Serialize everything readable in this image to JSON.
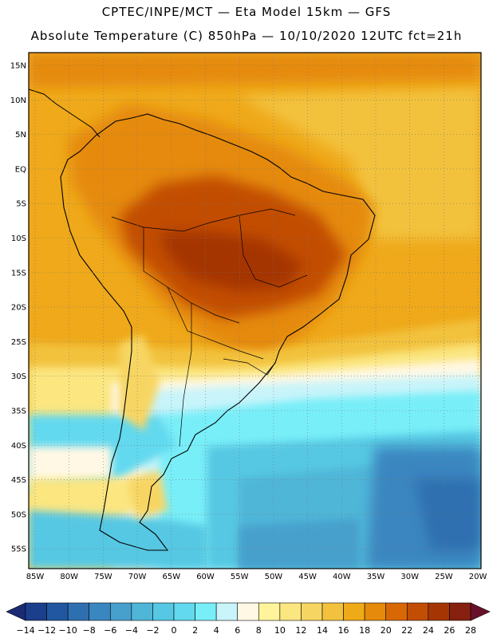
{
  "header": {
    "line1": "CPTEC/INPE/MCT —  Eta Model 15km — GFS",
    "line2": "Absolute Temperature (C) 850hPa — 10/10/2020 12UTC fct=21h"
  },
  "map": {
    "lat_labels": [
      "15N",
      "10N",
      "5N",
      "EQ",
      "5S",
      "10S",
      "15S",
      "20S",
      "25S",
      "30S",
      "35S",
      "40S",
      "45S",
      "50S",
      "55S"
    ],
    "lon_labels": [
      "85W",
      "80W",
      "75W",
      "70W",
      "65W",
      "60W",
      "55W",
      "50W",
      "45W",
      "40W",
      "35W",
      "30W",
      "25W",
      "20W"
    ]
  },
  "colorbar": {
    "labels": [
      "-14",
      "-12",
      "-10",
      "-8",
      "-6",
      "-4",
      "-2",
      "0",
      "2",
      "4",
      "6",
      "8",
      "10",
      "12",
      "14",
      "16",
      "18",
      "20",
      "22",
      "24",
      "26",
      "28"
    ],
    "colors": [
      "#1c3f8c",
      "#2157a0",
      "#2e6fb0",
      "#3a86c0",
      "#47a0cc",
      "#4fb6d8",
      "#56c8e3",
      "#62d9ef",
      "#78eef8",
      "#c8f4fa",
      "#fff8e4",
      "#fff49c",
      "#fbe680",
      "#f7d562",
      "#f2c23e",
      "#efaa18",
      "#e58a0a",
      "#d86806",
      "#c24e05",
      "#a53604",
      "#862010"
    ]
  },
  "colors": {
    "frame": "#000000",
    "grid": "#777777",
    "ocean_warm": "#efa91a",
    "land_hot": "#c24e05"
  }
}
